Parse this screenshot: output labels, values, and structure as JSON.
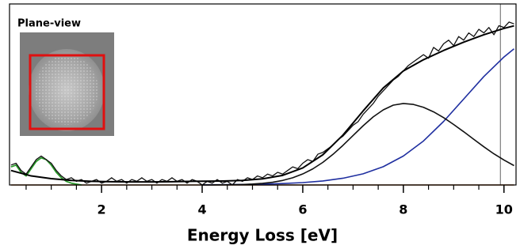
{
  "chart_data": {
    "type": "line",
    "xlabel": "Energy Loss [eV]",
    "inset_label": "Plane-view",
    "xlim": [
      0.17,
      10.24
    ],
    "ylim": [
      0,
      1
    ],
    "xticks": [
      2,
      4,
      6,
      8,
      10
    ],
    "xminorticks": [
      0.5,
      1,
      1.5,
      2.5,
      3,
      3.5,
      4.5,
      5,
      5.5,
      6.5,
      7,
      7.5,
      8.5,
      9,
      9.5
    ],
    "vline": {
      "x": 9.93,
      "color": "#888888"
    },
    "series": [
      {
        "color": "#8b4513",
        "width": 1.5,
        "x": [
          0.2,
          10.2
        ],
        "values": [
          0,
          0
        ]
      },
      {
        "color": "#2a9a2a",
        "width": 1.8,
        "x": [
          0.2,
          0.3,
          0.4,
          0.5,
          0.6,
          0.7,
          0.8,
          0.9,
          1.0,
          1.1,
          1.2,
          1.3,
          1.4,
          1.5,
          1.6
        ],
        "values": [
          0.1,
          0.11,
          0.07,
          0.05,
          0.09,
          0.13,
          0.15,
          0.14,
          0.11,
          0.07,
          0.04,
          0.02,
          0.01,
          0.005,
          0
        ]
      },
      {
        "color": "#1f2fa0",
        "width": 1.6,
        "x": [
          4.0,
          4.4,
          4.8,
          5.2,
          5.6,
          6.0,
          6.4,
          6.8,
          7.2,
          7.6,
          8.0,
          8.4,
          8.8,
          9.2,
          9.6,
          10.0,
          10.2
        ],
        "values": [
          0.0009,
          0.0016,
          0.0027,
          0.0046,
          0.0078,
          0.0131,
          0.0222,
          0.0372,
          0.0617,
          0.101,
          0.16,
          0.243,
          0.351,
          0.475,
          0.599,
          0.707,
          0.752
        ]
      },
      {
        "color": "#111111",
        "width": 1.6,
        "x": [
          4.0,
          4.2,
          4.4,
          4.6,
          4.8,
          5.0,
          5.2,
          5.4,
          5.6,
          5.8,
          6.0,
          6.2,
          6.4,
          6.6,
          6.8,
          7.0,
          7.2,
          7.4,
          7.6,
          7.8,
          8.0,
          8.2,
          8.4,
          8.6,
          8.8,
          9.0,
          9.2,
          9.4,
          9.6,
          9.8,
          10.0,
          10.2
        ],
        "values": [
          0,
          0.0003,
          0.0007,
          0.0014,
          0.0027,
          0.005,
          0.009,
          0.015,
          0.025,
          0.04,
          0.061,
          0.089,
          0.125,
          0.169,
          0.219,
          0.273,
          0.327,
          0.376,
          0.415,
          0.441,
          0.45,
          0.445,
          0.429,
          0.404,
          0.372,
          0.334,
          0.294,
          0.252,
          0.211,
          0.172,
          0.138,
          0.107
        ]
      },
      {
        "color": "#111111",
        "width": 1.3,
        "x": [
          0.2,
          0.3,
          0.4,
          0.5,
          0.6,
          0.7,
          0.8,
          0.9,
          1.0,
          1.1,
          1.2,
          1.3,
          1.4,
          1.5,
          1.6,
          1.7,
          1.8,
          1.9,
          2.0,
          2.1,
          2.2,
          2.3,
          2.4,
          2.5,
          2.6,
          2.7,
          2.8,
          2.9,
          3.0,
          3.1,
          3.2,
          3.3,
          3.4,
          3.5,
          3.6,
          3.7,
          3.8,
          3.9,
          4.0,
          4.1,
          4.2,
          4.3,
          4.4,
          4.5,
          4.6,
          4.7,
          4.8,
          4.9,
          5.0,
          5.1,
          5.2,
          5.3,
          5.4,
          5.5,
          5.6,
          5.7,
          5.8,
          5.9,
          6.0,
          6.1,
          6.2,
          6.3,
          6.4,
          6.5,
          6.6,
          6.7,
          6.8,
          6.9,
          7.0,
          7.1,
          7.2,
          7.3,
          7.4,
          7.5,
          7.6,
          7.7,
          7.8,
          7.9,
          8.0,
          8.1,
          8.2,
          8.3,
          8.4,
          8.5,
          8.6,
          8.7,
          8.8,
          8.9,
          9.0,
          9.1,
          9.2,
          9.3,
          9.4,
          9.5,
          9.6,
          9.7,
          9.8,
          9.9,
          10.0,
          10.1,
          10.2
        ],
        "values": [
          0.11,
          0.12,
          0.08,
          0.06,
          0.1,
          0.14,
          0.16,
          0.14,
          0.12,
          0.08,
          0.05,
          0.03,
          0.04,
          0.02,
          0.03,
          0.01,
          0.02,
          0.03,
          0.01,
          0.02,
          0.04,
          0.02,
          0.03,
          0.01,
          0.03,
          0.02,
          0.04,
          0.02,
          0.03,
          0.01,
          0.03,
          0.02,
          0.04,
          0.02,
          0.03,
          0.01,
          0.03,
          0.02,
          0,
          0.02,
          0.01,
          0.03,
          0.01,
          0.02,
          0,
          0.03,
          0.02,
          0.04,
          0.03,
          0.05,
          0.04,
          0.06,
          0.05,
          0.07,
          0.06,
          0.08,
          0.1,
          0.09,
          0.12,
          0.14,
          0.13,
          0.17,
          0.18,
          0.2,
          0.22,
          0.25,
          0.27,
          0.3,
          0.33,
          0.35,
          0.39,
          0.42,
          0.45,
          0.49,
          0.52,
          0.55,
          0.58,
          0.6,
          0.63,
          0.66,
          0.68,
          0.7,
          0.72,
          0.7,
          0.76,
          0.74,
          0.78,
          0.8,
          0.77,
          0.82,
          0.8,
          0.84,
          0.82,
          0.86,
          0.84,
          0.87,
          0.83,
          0.88,
          0.87,
          0.9,
          0.89
        ]
      },
      {
        "color": "#000000",
        "width": 2,
        "x": [
          0.2,
          0.6,
          1.0,
          1.4,
          1.8,
          2.2,
          2.6,
          3.0,
          3.4,
          3.8,
          4.0,
          4.4,
          4.8,
          5.2,
          5.6,
          6.0,
          6.4,
          6.8,
          7.2,
          7.6,
          8.0,
          8.4,
          8.8,
          9.2,
          9.6,
          10.0,
          10.2
        ],
        "values": [
          0.08,
          0.05,
          0.035,
          0.025,
          0.02,
          0.018,
          0.017,
          0.017,
          0.018,
          0.02,
          0.021,
          0.022,
          0.025,
          0.034,
          0.053,
          0.094,
          0.167,
          0.276,
          0.409,
          0.536,
          0.63,
          0.692,
          0.743,
          0.789,
          0.83,
          0.865,
          0.879
        ]
      }
    ]
  }
}
